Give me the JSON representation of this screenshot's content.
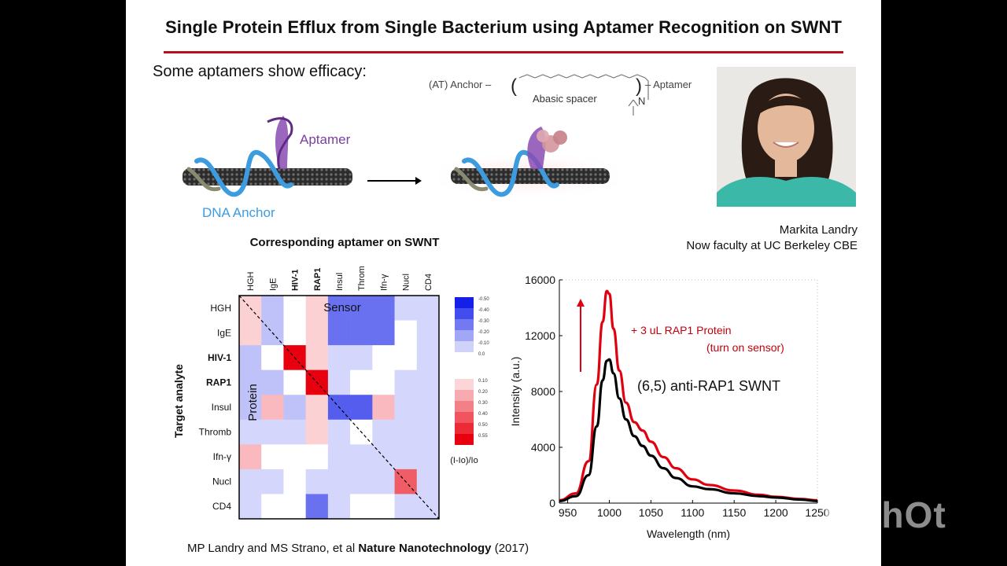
{
  "slide": {
    "title": "Single Protein Efflux from Single Bacterium using Aptamer Recognition on SWNT",
    "subtitle": "Some aptamers show efficacy:",
    "citation_plain": "MP Landry and MS Strano, et al ",
    "citation_journal": "Nature Nanotechnology",
    "citation_year": " (2017)",
    "credit_name": "Markita Landry",
    "credit_title": "Now faculty at UC Berkeley CBE"
  },
  "schematic": {
    "anchor_label": "(AT) Anchor –",
    "spacer_label": "Abasic spacer",
    "aptamer_suffix": "– Aptamer",
    "n_label": "N",
    "aptamer_label": "Aptamer",
    "dna_anchor_label": "DNA Anchor",
    "colors": {
      "aptamer": "#7a3fa0",
      "dna": "#3d9be0",
      "tube": "#3a3a3a"
    }
  },
  "heatmap": {
    "title": "Corresponding aptamer on SWNT",
    "columns": [
      "HGH",
      "IgE",
      "HIV-1",
      "RAP1",
      "Insul",
      "Throm",
      "Ifn-γ",
      "Nucl",
      "CD4"
    ],
    "rows": [
      "HGH",
      "IgE",
      "HIV-1",
      "RAP1",
      "Insul",
      "Thromb",
      "Ifn-γ",
      "Nucl",
      "CD4"
    ],
    "bold_labels": [
      "HIV-1",
      "RAP1"
    ],
    "y_label": "Target analyte",
    "sensor_label": "Sensor",
    "protein_label": "Protein",
    "cells": [
      [
        0.1,
        -0.15,
        0.0,
        0.1,
        -0.35,
        -0.35,
        -0.35,
        -0.1,
        -0.1
      ],
      [
        0.1,
        -0.15,
        0.0,
        0.1,
        -0.35,
        -0.35,
        -0.35,
        0.0,
        -0.1
      ],
      [
        -0.15,
        0.0,
        0.55,
        0.1,
        -0.1,
        -0.1,
        0.0,
        0.0,
        -0.1
      ],
      [
        -0.15,
        -0.15,
        0.0,
        0.55,
        -0.1,
        0.0,
        0.0,
        -0.1,
        -0.1
      ],
      [
        -0.15,
        0.15,
        -0.15,
        0.1,
        -0.4,
        -0.4,
        0.15,
        -0.1,
        -0.1
      ],
      [
        -0.1,
        -0.1,
        -0.1,
        0.1,
        -0.1,
        0.0,
        -0.1,
        -0.1,
        -0.1
      ],
      [
        0.15,
        0.0,
        0.0,
        0.0,
        -0.1,
        -0.1,
        -0.1,
        -0.1,
        -0.1
      ],
      [
        -0.1,
        -0.1,
        0.0,
        -0.1,
        -0.1,
        -0.1,
        -0.1,
        0.35,
        -0.1
      ],
      [
        -0.1,
        0.0,
        0.0,
        -0.35,
        -0.1,
        0.0,
        0.0,
        -0.1,
        -0.1
      ]
    ],
    "legend_neg_ticks": [
      "-0.50",
      "-0.40",
      "-0.30",
      "-0.20",
      "-0.10",
      "0.0"
    ],
    "legend_pos_ticks": [
      "0.10",
      "0.20",
      "0.30",
      "0.40",
      "0.50",
      "0.55"
    ],
    "legend_label": "(I-Io)/Io",
    "colors": {
      "positive": "#e8000f",
      "negative": "#1420e8",
      "neutral": "#ffffff"
    }
  },
  "chart_data": {
    "type": "line",
    "x": [
      940,
      960,
      975,
      985,
      992,
      997,
      1000,
      1005,
      1012,
      1020,
      1030,
      1040,
      1050,
      1065,
      1080,
      1100,
      1120,
      1150,
      1180,
      1200,
      1230,
      1250
    ],
    "series": [
      {
        "name": "+ 3 uL RAP1 Protein (turn on sensor)",
        "color": "#e00010",
        "values": [
          200,
          700,
          3000,
          8500,
          13000,
          15200,
          15000,
          12500,
          9500,
          7200,
          5800,
          5200,
          4400,
          3300,
          2500,
          1700,
          1300,
          900,
          600,
          450,
          300,
          200
        ]
      },
      {
        "name": "(6,5) anti-RAP1 SWNT",
        "color": "#000000",
        "values": [
          150,
          500,
          2000,
          5500,
          8800,
          10200,
          10300,
          9300,
          7500,
          6000,
          4800,
          4100,
          3400,
          2500,
          1800,
          1200,
          1000,
          700,
          500,
          400,
          250,
          150
        ]
      }
    ],
    "xlabel": "Wavelength (nm)",
    "ylabel": "Intensity (a.u.)",
    "xlim": [
      940,
      1250
    ],
    "ylim": [
      0,
      16000
    ],
    "xticks": [
      950,
      1000,
      1050,
      1100,
      1150,
      1200,
      1250
    ],
    "yticks": [
      0,
      4000,
      8000,
      12000,
      16000
    ],
    "annotation_protein_1": "+ 3 uL RAP1 Protein",
    "annotation_protein_2": "(turn on sensor)",
    "annotation_sensor": "(6,5) anti-RAP1 SWNT",
    "arrow_color": "#e00010"
  },
  "watermark": "inShOt"
}
